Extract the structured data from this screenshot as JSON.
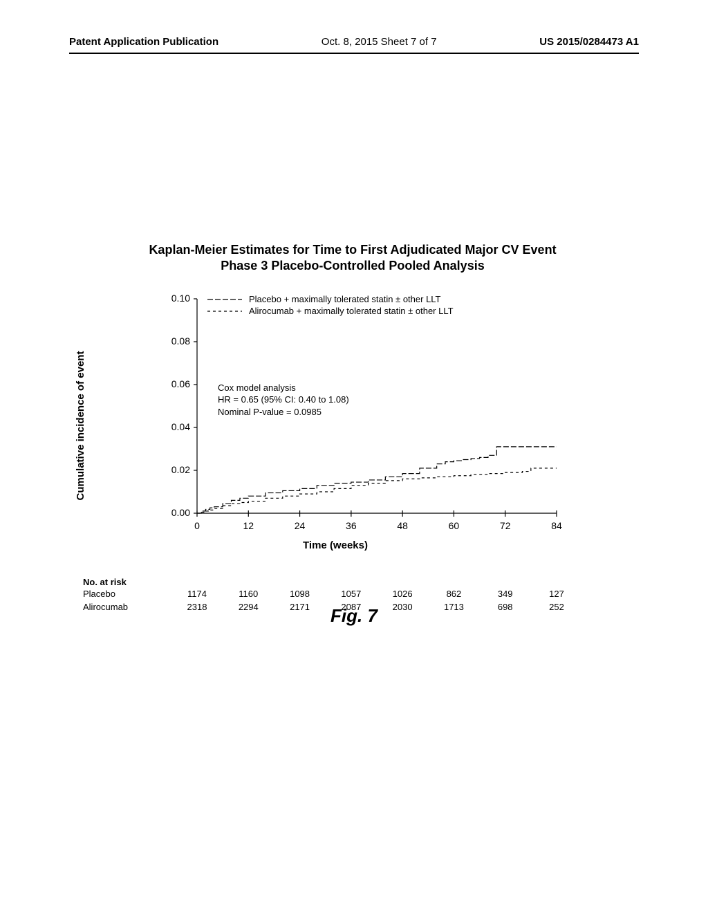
{
  "header": {
    "left": "Patent Application Publication",
    "center": "Oct. 8, 2015  Sheet 7 of 7",
    "right": "US 2015/0284473 A1"
  },
  "chart": {
    "title_line1": "Kaplan-Meier Estimates for Time to First Adjudicated Major CV Event",
    "title_line2": "Phase 3 Placebo-Controlled Pooled Analysis",
    "type": "line",
    "y_label": "Cumulative incidence of event",
    "x_label": "Time (weeks)",
    "y_ticks": [
      "0.00",
      "0.02",
      "0.04",
      "0.06",
      "0.08",
      "0.10"
    ],
    "y_tick_values": [
      0.0,
      0.02,
      0.04,
      0.06,
      0.08,
      0.1
    ],
    "x_ticks": [
      "0",
      "12",
      "24",
      "36",
      "48",
      "60",
      "72",
      "84"
    ],
    "x_tick_values": [
      0,
      12,
      24,
      36,
      48,
      60,
      72,
      84
    ],
    "ylim": [
      0,
      0.1
    ],
    "xlim": [
      0,
      84
    ],
    "background_color": "#ffffff",
    "axis_color": "#000000",
    "tick_fontsize": 14,
    "label_fontsize": 15,
    "title_fontsize": 18,
    "legend": {
      "items": [
        {
          "label": "Placebo + maximally tolerated statin ± other LLT",
          "dash": "8,3"
        },
        {
          "label": "Alirocumab + maximally tolerated statin ± other LLT",
          "dash": "4,4"
        }
      ]
    },
    "annotation": {
      "line1": "Cox model analysis",
      "line2": "HR = 0.65 (95% CI: 0.40 to 1.08)",
      "line3": "Nominal P-value = 0.0985"
    },
    "series": [
      {
        "name": "placebo",
        "dash": "8,3",
        "color": "#000000",
        "width": 1.2,
        "points": [
          [
            0,
            0
          ],
          [
            1,
            0.001
          ],
          [
            2,
            0.0018
          ],
          [
            3,
            0.0025
          ],
          [
            4,
            0.003
          ],
          [
            6,
            0.0045
          ],
          [
            8,
            0.006
          ],
          [
            10,
            0.007
          ],
          [
            12,
            0.008
          ],
          [
            16,
            0.0095
          ],
          [
            20,
            0.0105
          ],
          [
            24,
            0.0115
          ],
          [
            28,
            0.013
          ],
          [
            32,
            0.014
          ],
          [
            36,
            0.0145
          ],
          [
            40,
            0.0155
          ],
          [
            44,
            0.017
          ],
          [
            48,
            0.0185
          ],
          [
            52,
            0.021
          ],
          [
            56,
            0.023
          ],
          [
            58,
            0.024
          ],
          [
            60,
            0.0245
          ],
          [
            62,
            0.025
          ],
          [
            64,
            0.0255
          ],
          [
            66,
            0.026
          ],
          [
            68,
            0.027
          ],
          [
            70,
            0.031
          ],
          [
            72,
            0.031
          ],
          [
            76,
            0.031
          ],
          [
            80,
            0.031
          ],
          [
            84,
            0.031
          ]
        ]
      },
      {
        "name": "alirocumab",
        "dash": "4,4",
        "color": "#000000",
        "width": 1.2,
        "points": [
          [
            0,
            0
          ],
          [
            1,
            0.0005
          ],
          [
            2,
            0.001
          ],
          [
            3,
            0.0015
          ],
          [
            4,
            0.0022
          ],
          [
            6,
            0.0035
          ],
          [
            8,
            0.0045
          ],
          [
            10,
            0.005
          ],
          [
            12,
            0.0055
          ],
          [
            16,
            0.007
          ],
          [
            20,
            0.008
          ],
          [
            24,
            0.009
          ],
          [
            28,
            0.01
          ],
          [
            32,
            0.0115
          ],
          [
            36,
            0.013
          ],
          [
            40,
            0.014
          ],
          [
            44,
            0.0152
          ],
          [
            48,
            0.016
          ],
          [
            52,
            0.0165
          ],
          [
            56,
            0.017
          ],
          [
            60,
            0.0175
          ],
          [
            64,
            0.018
          ],
          [
            68,
            0.0185
          ],
          [
            72,
            0.019
          ],
          [
            76,
            0.0195
          ],
          [
            78,
            0.021
          ],
          [
            80,
            0.021
          ],
          [
            84,
            0.021
          ]
        ]
      }
    ]
  },
  "risk_table": {
    "header": "No. at risk",
    "rows": [
      {
        "label": "Placebo",
        "values": [
          "1174",
          "1160",
          "1098",
          "1057",
          "1026",
          "862",
          "349",
          "127"
        ]
      },
      {
        "label": "Alirocumab",
        "values": [
          "2318",
          "2294",
          "2171",
          "2087",
          "2030",
          "1713",
          "698",
          "252"
        ]
      }
    ]
  },
  "figure_label": "Fig. 7"
}
